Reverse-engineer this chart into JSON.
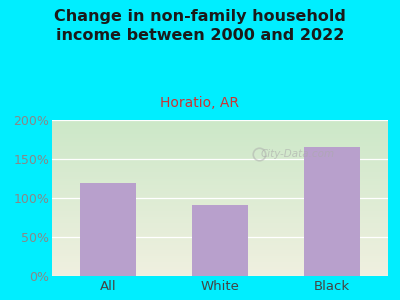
{
  "title": "Change in non-family household\nincome between 2000 and 2022",
  "subtitle": "Horatio, AR",
  "categories": [
    "All",
    "White",
    "Black"
  ],
  "values": [
    119,
    91,
    166
  ],
  "bar_color": "#b8a0cc",
  "title_fontsize": 11.5,
  "subtitle_fontsize": 10,
  "subtitle_color": "#cc3333",
  "title_color": "#1a1a1a",
  "background_color": "#00eeff",
  "plot_bg_top": "#cce8c8",
  "plot_bg_bottom": "#f0f0e0",
  "ylim": [
    0,
    200
  ],
  "yticks": [
    0,
    50,
    100,
    150,
    200
  ],
  "ytick_color": "#888888",
  "xtick_color": "#444444",
  "watermark": "City-Data.com"
}
